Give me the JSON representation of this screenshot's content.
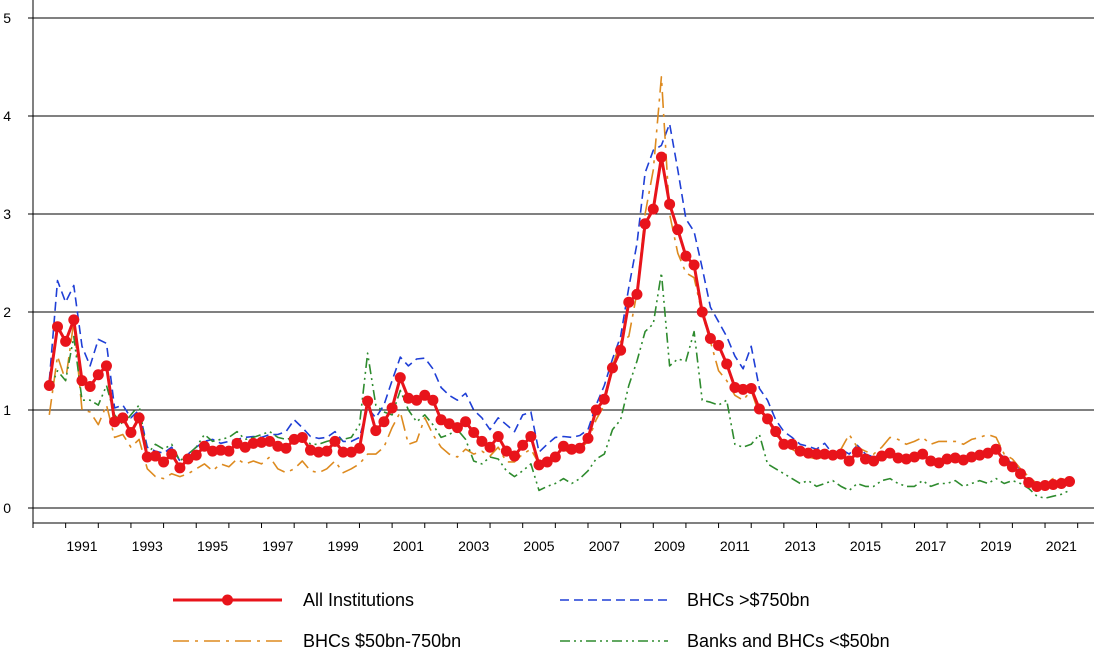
{
  "chart_data": {
    "type": "line",
    "title": "",
    "xlabel": "",
    "ylabel": "",
    "x_start": 1990.5,
    "x_step": 0.25,
    "xlim": [
      1990.0,
      2022.5
    ],
    "ylim": [
      0,
      5
    ],
    "yticks": [
      0,
      1,
      2,
      3,
      4,
      5
    ],
    "xticks": [
      "1991",
      "1993",
      "1995",
      "1997",
      "1999",
      "2001",
      "2003",
      "2005",
      "2007",
      "2009",
      "2011",
      "2013",
      "2015",
      "2017",
      "2019",
      "2021"
    ],
    "grid": "horizontal",
    "legend_position": "bottom",
    "series": [
      {
        "name": "All Institutions",
        "color": "#e8141b",
        "style": "solid-markers",
        "values": [
          1.25,
          1.85,
          1.7,
          1.92,
          1.3,
          1.24,
          1.36,
          1.45,
          0.88,
          0.92,
          0.77,
          0.92,
          0.52,
          0.53,
          0.47,
          0.55,
          0.41,
          0.5,
          0.54,
          0.63,
          0.58,
          0.59,
          0.58,
          0.66,
          0.62,
          0.66,
          0.67,
          0.68,
          0.63,
          0.61,
          0.7,
          0.72,
          0.59,
          0.57,
          0.58,
          0.68,
          0.57,
          0.57,
          0.61,
          1.09,
          0.79,
          0.88,
          1.02,
          1.33,
          1.12,
          1.1,
          1.15,
          1.1,
          0.9,
          0.86,
          0.82,
          0.88,
          0.77,
          0.68,
          0.62,
          0.73,
          0.58,
          0.53,
          0.64,
          0.73,
          0.44,
          0.47,
          0.52,
          0.63,
          0.6,
          0.61,
          0.71,
          1.0,
          1.11,
          1.43,
          1.61,
          2.1,
          2.18,
          2.9,
          3.05,
          3.58,
          3.1,
          2.84,
          2.57,
          2.48,
          2.0,
          1.73,
          1.66,
          1.47,
          1.23,
          1.21,
          1.22,
          1.01,
          0.91,
          0.78,
          0.65,
          0.65,
          0.58,
          0.56,
          0.55,
          0.55,
          0.54,
          0.55,
          0.48,
          0.57,
          0.5,
          0.48,
          0.53,
          0.56,
          0.51,
          0.5,
          0.52,
          0.55,
          0.48,
          0.46,
          0.5,
          0.51,
          0.49,
          0.52,
          0.54,
          0.56,
          0.6,
          0.48,
          0.42,
          0.35,
          0.26,
          0.22,
          0.23,
          0.24,
          0.25,
          0.27
        ]
      },
      {
        "name": "BHCs >$750bn",
        "color": "#1f3fd6",
        "style": "dashed",
        "values": [
          1.3,
          2.32,
          2.1,
          2.27,
          1.65,
          1.45,
          1.72,
          1.68,
          1.02,
          1.05,
          0.92,
          1.0,
          0.62,
          0.58,
          0.56,
          0.62,
          0.48,
          0.55,
          0.62,
          0.68,
          0.7,
          0.66,
          0.68,
          0.7,
          0.72,
          0.73,
          0.72,
          0.75,
          0.75,
          0.78,
          0.9,
          0.82,
          0.73,
          0.71,
          0.72,
          0.78,
          0.68,
          0.68,
          0.72,
          1.02,
          0.92,
          1.05,
          1.3,
          1.54,
          1.45,
          1.52,
          1.53,
          1.42,
          1.23,
          1.15,
          1.1,
          1.17,
          1.0,
          0.92,
          0.8,
          0.92,
          0.85,
          0.78,
          0.95,
          0.98,
          0.57,
          0.65,
          0.72,
          0.73,
          0.72,
          0.74,
          0.8,
          1.05,
          1.25,
          1.52,
          1.75,
          2.25,
          2.7,
          3.42,
          3.65,
          3.7,
          3.92,
          3.45,
          2.95,
          2.82,
          2.45,
          2.05,
          1.9,
          1.75,
          1.55,
          1.42,
          1.65,
          1.22,
          1.1,
          0.9,
          0.78,
          0.72,
          0.65,
          0.63,
          0.6,
          0.66,
          0.55,
          0.6,
          0.55,
          0.64,
          0.55,
          0.52,
          0.55,
          0.57,
          0.52,
          0.52,
          0.55,
          0.55,
          0.5,
          0.48,
          0.52,
          0.5,
          0.48,
          0.52,
          0.55,
          0.54,
          0.57,
          0.52,
          0.45,
          0.4,
          0.27,
          0.22,
          0.23,
          0.23,
          0.25,
          0.25
        ]
      },
      {
        "name": "BHCs $50bn-750bn",
        "color": "#dd8a1f",
        "style": "dashdot",
        "values": [
          0.95,
          1.55,
          1.3,
          1.9,
          1.0,
          0.98,
          0.85,
          1.05,
          0.72,
          0.75,
          0.62,
          0.7,
          0.4,
          0.32,
          0.3,
          0.35,
          0.32,
          0.35,
          0.4,
          0.45,
          0.38,
          0.45,
          0.42,
          0.5,
          0.45,
          0.48,
          0.45,
          0.52,
          0.4,
          0.36,
          0.4,
          0.48,
          0.38,
          0.36,
          0.4,
          0.48,
          0.36,
          0.4,
          0.45,
          0.55,
          0.55,
          0.62,
          0.82,
          0.98,
          0.65,
          0.68,
          0.92,
          0.75,
          0.62,
          0.55,
          0.52,
          0.6,
          0.55,
          0.58,
          0.53,
          0.62,
          0.47,
          0.47,
          0.55,
          0.6,
          0.45,
          0.48,
          0.55,
          0.6,
          0.55,
          0.6,
          0.68,
          0.9,
          1.05,
          1.45,
          1.7,
          1.75,
          2.2,
          3.0,
          3.45,
          4.4,
          3.0,
          2.6,
          2.4,
          2.35,
          1.98,
          1.7,
          1.4,
          1.3,
          1.15,
          1.1,
          1.2,
          0.95,
          0.9,
          0.75,
          0.65,
          0.6,
          0.55,
          0.52,
          0.5,
          0.52,
          0.55,
          0.6,
          0.75,
          0.62,
          0.58,
          0.55,
          0.62,
          0.72,
          0.7,
          0.65,
          0.68,
          0.72,
          0.65,
          0.68,
          0.68,
          0.68,
          0.65,
          0.7,
          0.72,
          0.75,
          0.72,
          0.55,
          0.5,
          0.4,
          0.32,
          0.25,
          0.25,
          0.3,
          0.3,
          0.28
        ]
      },
      {
        "name": "Banks and BHCs <$50bn",
        "color": "#2e8b2e",
        "style": "dashdotdot",
        "values": [
          1.2,
          1.4,
          1.3,
          1.75,
          1.1,
          1.1,
          1.05,
          1.25,
          0.95,
          0.85,
          0.95,
          1.05,
          0.55,
          0.65,
          0.6,
          0.65,
          0.48,
          0.55,
          0.62,
          0.75,
          0.68,
          0.7,
          0.72,
          0.78,
          0.7,
          0.72,
          0.75,
          0.78,
          0.72,
          0.7,
          0.72,
          0.75,
          0.65,
          0.65,
          0.68,
          0.7,
          0.7,
          0.72,
          0.85,
          1.58,
          1.05,
          0.98,
          0.95,
          1.2,
          1.0,
          0.88,
          0.95,
          0.85,
          0.72,
          0.75,
          0.8,
          0.7,
          0.48,
          0.45,
          0.52,
          0.5,
          0.38,
          0.32,
          0.38,
          0.45,
          0.18,
          0.22,
          0.25,
          0.3,
          0.25,
          0.3,
          0.38,
          0.5,
          0.55,
          0.8,
          0.9,
          1.25,
          1.5,
          1.8,
          1.88,
          2.4,
          1.45,
          1.52,
          1.5,
          1.8,
          1.1,
          1.08,
          1.05,
          1.1,
          0.65,
          0.62,
          0.65,
          0.75,
          0.45,
          0.4,
          0.35,
          0.3,
          0.25,
          0.28,
          0.22,
          0.25,
          0.28,
          0.22,
          0.18,
          0.25,
          0.22,
          0.22,
          0.28,
          0.3,
          0.25,
          0.22,
          0.22,
          0.28,
          0.22,
          0.25,
          0.25,
          0.28,
          0.22,
          0.25,
          0.28,
          0.25,
          0.3,
          0.25,
          0.28,
          0.25,
          0.2,
          0.12,
          0.1,
          0.12,
          0.14,
          0.18
        ]
      }
    ]
  }
}
